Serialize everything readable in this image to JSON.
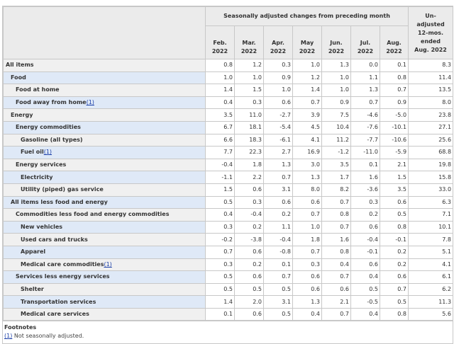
{
  "header": {
    "group_label": "Seasonally adjusted changes from preceding month",
    "months": [
      [
        "Feb.",
        "2022"
      ],
      [
        "Mar.",
        "2022"
      ],
      [
        "Apr.",
        "2022"
      ],
      [
        "May",
        "2022"
      ],
      [
        "Jun.",
        "2022"
      ],
      [
        "Jul.",
        "2022"
      ],
      [
        "Aug.",
        "2022"
      ]
    ],
    "unadjusted_label": [
      "Un-",
      "adjusted",
      "12-mos.",
      "ended",
      "Aug. 2022"
    ]
  },
  "rows": [
    {
      "label": "All items",
      "level": 0,
      "values": [
        "0.8",
        "1.2",
        "0.3",
        "1.0",
        "1.3",
        "0.0",
        "0.1",
        "8.3"
      ]
    },
    {
      "label": "Food",
      "level": 1,
      "values": [
        "1.0",
        "1.0",
        "0.9",
        "1.2",
        "1.0",
        "1.1",
        "0.8",
        "11.4"
      ]
    },
    {
      "label": "Food at home",
      "level": 2,
      "values": [
        "1.4",
        "1.5",
        "1.0",
        "1.4",
        "1.0",
        "1.3",
        "0.7",
        "13.5"
      ]
    },
    {
      "label": "Food away from home",
      "footnote": "(1)",
      "level": 2,
      "values": [
        "0.4",
        "0.3",
        "0.6",
        "0.7",
        "0.9",
        "0.7",
        "0.9",
        "8.0"
      ]
    },
    {
      "label": "Energy",
      "level": 1,
      "values": [
        "3.5",
        "11.0",
        "-2.7",
        "3.9",
        "7.5",
        "-4.6",
        "-5.0",
        "23.8"
      ]
    },
    {
      "label": "Energy commodities",
      "level": 2,
      "values": [
        "6.7",
        "18.1",
        "-5.4",
        "4.5",
        "10.4",
        "-7.6",
        "-10.1",
        "27.1"
      ]
    },
    {
      "label": "Gasoline (all types)",
      "level": 3,
      "values": [
        "6.6",
        "18.3",
        "-6.1",
        "4.1",
        "11.2",
        "-7.7",
        "-10.6",
        "25.6"
      ]
    },
    {
      "label": "Fuel oil",
      "footnote": "(1)",
      "level": 3,
      "values": [
        "7.7",
        "22.3",
        "2.7",
        "16.9",
        "-1.2",
        "-11.0",
        "-5.9",
        "68.8"
      ]
    },
    {
      "label": "Energy services",
      "level": 2,
      "values": [
        "-0.4",
        "1.8",
        "1.3",
        "3.0",
        "3.5",
        "0.1",
        "2.1",
        "19.8"
      ]
    },
    {
      "label": "Electricity",
      "level": 3,
      "values": [
        "-1.1",
        "2.2",
        "0.7",
        "1.3",
        "1.7",
        "1.6",
        "1.5",
        "15.8"
      ]
    },
    {
      "label": "Utility (piped) gas service",
      "level": 3,
      "values": [
        "1.5",
        "0.6",
        "3.1",
        "8.0",
        "8.2",
        "-3.6",
        "3.5",
        "33.0"
      ]
    },
    {
      "label": "All items less food and energy",
      "level": 1,
      "values": [
        "0.5",
        "0.3",
        "0.6",
        "0.6",
        "0.7",
        "0.3",
        "0.6",
        "6.3"
      ]
    },
    {
      "label": "Commodities less food and energy commodities",
      "level": 2,
      "values": [
        "0.4",
        "-0.4",
        "0.2",
        "0.7",
        "0.8",
        "0.2",
        "0.5",
        "7.1"
      ]
    },
    {
      "label": "New vehicles",
      "level": 3,
      "values": [
        "0.3",
        "0.2",
        "1.1",
        "1.0",
        "0.7",
        "0.6",
        "0.8",
        "10.1"
      ]
    },
    {
      "label": "Used cars and trucks",
      "level": 3,
      "values": [
        "-0.2",
        "-3.8",
        "-0.4",
        "1.8",
        "1.6",
        "-0.4",
        "-0.1",
        "7.8"
      ]
    },
    {
      "label": "Apparel",
      "level": 3,
      "values": [
        "0.7",
        "0.6",
        "-0.8",
        "0.7",
        "0.8",
        "-0.1",
        "0.2",
        "5.1"
      ]
    },
    {
      "label": "Medical care commodities",
      "footnote": "(1)",
      "level": 3,
      "values": [
        "0.3",
        "0.2",
        "0.1",
        "0.3",
        "0.4",
        "0.6",
        "0.2",
        "4.1"
      ]
    },
    {
      "label": "Services less energy services",
      "level": 2,
      "values": [
        "0.5",
        "0.6",
        "0.7",
        "0.6",
        "0.7",
        "0.4",
        "0.6",
        "6.1"
      ]
    },
    {
      "label": "Shelter",
      "level": 3,
      "values": [
        "0.5",
        "0.5",
        "0.5",
        "0.6",
        "0.6",
        "0.5",
        "0.7",
        "6.2"
      ]
    },
    {
      "label": "Transportation services",
      "level": 3,
      "values": [
        "1.4",
        "2.0",
        "3.1",
        "1.3",
        "2.1",
        "-0.5",
        "0.5",
        "11.3"
      ]
    },
    {
      "label": "Medical care services",
      "level": 3,
      "values": [
        "0.1",
        "0.6",
        "0.5",
        "0.4",
        "0.7",
        "0.4",
        "0.8",
        "5.6"
      ]
    }
  ],
  "footnotes": {
    "title": "Footnotes",
    "items": [
      {
        "marker": "(1)",
        "text": " Not seasonally adjusted."
      }
    ]
  },
  "colors": {
    "label_odd": "#f0f0f0",
    "label_even": "#dfe9f7",
    "header": "#ebebeb",
    "link": "#1a3ea8"
  }
}
